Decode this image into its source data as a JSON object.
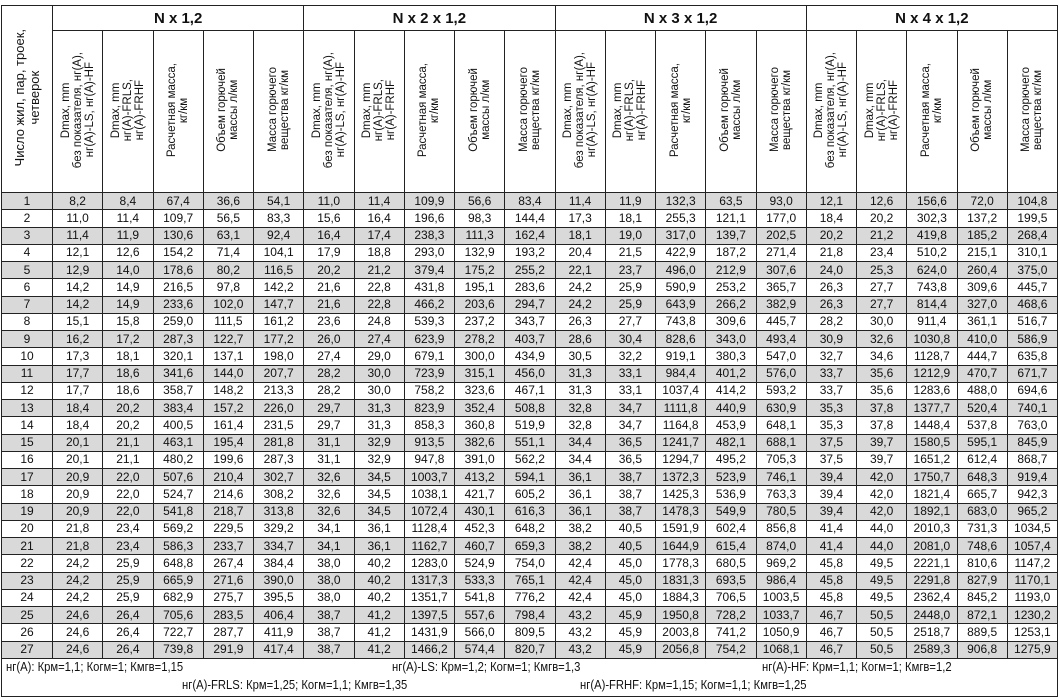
{
  "row_header": "Число жил, пар, троек,\nчетверок",
  "columns": [
    "Dmax, mm\nбез показателя, нг(А),\nнг(А)-LS, нг(А)-HF",
    "Dmax, mm\nнг(А)-FRLS,\nнг(А)-FRHF",
    "Расчетная масса,\nкг/км",
    "Объем горючей\nмассы л/км",
    "Масса горючего\nвещества кг/км"
  ],
  "groups": [
    "N x 1,2",
    "N x 2 x 1,2",
    "N x 3 x 1,2",
    "N x 4 x 1,2"
  ],
  "rows": [
    [
      "1",
      "8,2",
      "8,4",
      "67,4",
      "36,6",
      "54,1",
      "11,0",
      "11,4",
      "109,9",
      "56,6",
      "83,4",
      "11,4",
      "11,9",
      "132,3",
      "63,5",
      "93,0",
      "12,1",
      "12,6",
      "156,6",
      "72,0",
      "104,8"
    ],
    [
      "2",
      "11,0",
      "11,4",
      "109,7",
      "56,5",
      "83,3",
      "15,6",
      "16,4",
      "196,6",
      "98,3",
      "144,4",
      "17,3",
      "18,1",
      "255,3",
      "121,1",
      "177,0",
      "18,4",
      "20,2",
      "302,3",
      "137,2",
      "199,5"
    ],
    [
      "3",
      "11,4",
      "11,9",
      "130,6",
      "63,1",
      "92,4",
      "16,4",
      "17,4",
      "238,3",
      "111,3",
      "162,4",
      "18,1",
      "19,0",
      "317,0",
      "139,7",
      "202,5",
      "20,2",
      "21,2",
      "419,8",
      "185,2",
      "268,4"
    ],
    [
      "4",
      "12,1",
      "12,6",
      "154,2",
      "71,4",
      "104,1",
      "17,9",
      "18,8",
      "293,0",
      "132,9",
      "193,2",
      "20,4",
      "21,5",
      "422,9",
      "187,2",
      "271,4",
      "21,8",
      "23,4",
      "510,2",
      "215,1",
      "310,1"
    ],
    [
      "5",
      "12,9",
      "14,0",
      "178,6",
      "80,2",
      "116,5",
      "20,2",
      "21,2",
      "379,4",
      "175,2",
      "255,2",
      "22,1",
      "23,7",
      "496,0",
      "212,9",
      "307,6",
      "24,0",
      "25,3",
      "624,0",
      "260,4",
      "375,0"
    ],
    [
      "6",
      "14,2",
      "14,9",
      "216,5",
      "97,8",
      "142,2",
      "21,6",
      "22,8",
      "431,8",
      "195,1",
      "283,6",
      "24,2",
      "25,9",
      "590,9",
      "253,2",
      "365,7",
      "26,3",
      "27,7",
      "743,8",
      "309,6",
      "445,7"
    ],
    [
      "7",
      "14,2",
      "14,9",
      "233,6",
      "102,0",
      "147,7",
      "21,6",
      "22,8",
      "466,2",
      "203,6",
      "294,7",
      "24,2",
      "25,9",
      "643,9",
      "266,2",
      "382,9",
      "26,3",
      "27,7",
      "814,4",
      "327,0",
      "468,6"
    ],
    [
      "8",
      "15,1",
      "15,8",
      "259,0",
      "111,5",
      "161,2",
      "23,6",
      "24,8",
      "539,3",
      "237,2",
      "343,7",
      "26,3",
      "27,7",
      "743,8",
      "309,6",
      "445,7",
      "28,2",
      "30,0",
      "911,4",
      "361,1",
      "516,7"
    ],
    [
      "9",
      "16,2",
      "17,2",
      "287,3",
      "122,7",
      "177,2",
      "26,0",
      "27,4",
      "623,9",
      "278,2",
      "403,7",
      "28,6",
      "30,4",
      "828,6",
      "343,0",
      "493,4",
      "30,9",
      "32,6",
      "1030,8",
      "410,0",
      "586,9"
    ],
    [
      "10",
      "17,3",
      "18,1",
      "320,1",
      "137,1",
      "198,0",
      "27,4",
      "29,0",
      "679,1",
      "300,0",
      "434,9",
      "30,5",
      "32,2",
      "919,1",
      "380,3",
      "547,0",
      "32,7",
      "34,6",
      "1128,7",
      "444,7",
      "635,8"
    ],
    [
      "11",
      "17,7",
      "18,6",
      "341,6",
      "144,0",
      "207,7",
      "28,2",
      "30,0",
      "723,9",
      "315,1",
      "456,0",
      "31,3",
      "33,1",
      "984,4",
      "401,2",
      "576,0",
      "33,7",
      "35,6",
      "1212,9",
      "470,7",
      "671,7"
    ],
    [
      "12",
      "17,7",
      "18,6",
      "358,7",
      "148,2",
      "213,3",
      "28,2",
      "30,0",
      "758,2",
      "323,6",
      "467,1",
      "31,3",
      "33,1",
      "1037,4",
      "414,2",
      "593,2",
      "33,7",
      "35,6",
      "1283,6",
      "488,0",
      "694,6"
    ],
    [
      "13",
      "18,4",
      "20,2",
      "383,4",
      "157,2",
      "226,0",
      "29,7",
      "31,3",
      "823,9",
      "352,4",
      "508,8",
      "32,8",
      "34,7",
      "1111,8",
      "440,9",
      "630,9",
      "35,3",
      "37,8",
      "1377,7",
      "520,4",
      "740,1"
    ],
    [
      "14",
      "18,4",
      "20,2",
      "400,5",
      "161,4",
      "231,5",
      "29,7",
      "31,3",
      "858,3",
      "360,8",
      "519,9",
      "32,8",
      "34,7",
      "1164,8",
      "453,9",
      "648,1",
      "35,3",
      "37,8",
      "1448,4",
      "537,8",
      "763,0"
    ],
    [
      "15",
      "20,1",
      "21,1",
      "463,1",
      "195,4",
      "281,8",
      "31,1",
      "32,9",
      "913,5",
      "382,6",
      "551,1",
      "34,4",
      "36,5",
      "1241,7",
      "482,1",
      "688,1",
      "37,5",
      "39,7",
      "1580,5",
      "595,1",
      "845,9"
    ],
    [
      "16",
      "20,1",
      "21,1",
      "480,2",
      "199,6",
      "287,3",
      "31,1",
      "32,9",
      "947,8",
      "391,0",
      "562,2",
      "34,4",
      "36,5",
      "1294,7",
      "495,2",
      "705,3",
      "37,5",
      "39,7",
      "1651,2",
      "612,4",
      "868,7"
    ],
    [
      "17",
      "20,9",
      "22,0",
      "507,6",
      "210,4",
      "302,7",
      "32,6",
      "34,5",
      "1003,7",
      "413,2",
      "594,1",
      "36,1",
      "38,7",
      "1372,3",
      "523,9",
      "746,1",
      "39,4",
      "42,0",
      "1750,7",
      "648,3",
      "919,4"
    ],
    [
      "18",
      "20,9",
      "22,0",
      "524,7",
      "214,6",
      "308,2",
      "32,6",
      "34,5",
      "1038,1",
      "421,7",
      "605,2",
      "36,1",
      "38,7",
      "1425,3",
      "536,9",
      "763,3",
      "39,4",
      "42,0",
      "1821,4",
      "665,7",
      "942,3"
    ],
    [
      "19",
      "20,9",
      "22,0",
      "541,8",
      "218,7",
      "313,8",
      "32,6",
      "34,5",
      "1072,4",
      "430,1",
      "616,3",
      "36,1",
      "38,7",
      "1478,3",
      "549,9",
      "780,5",
      "39,4",
      "42,0",
      "1892,1",
      "683,0",
      "965,2"
    ],
    [
      "20",
      "21,8",
      "23,4",
      "569,2",
      "229,5",
      "329,2",
      "34,1",
      "36,1",
      "1128,4",
      "452,3",
      "648,2",
      "38,2",
      "40,5",
      "1591,9",
      "602,4",
      "856,8",
      "41,4",
      "44,0",
      "2010,3",
      "731,3",
      "1034,5"
    ],
    [
      "21",
      "21,8",
      "23,4",
      "586,3",
      "233,7",
      "334,7",
      "34,1",
      "36,1",
      "1162,7",
      "460,7",
      "659,3",
      "38,2",
      "40,5",
      "1644,9",
      "615,4",
      "874,0",
      "41,4",
      "44,0",
      "2081,0",
      "748,6",
      "1057,4"
    ],
    [
      "22",
      "24,2",
      "25,9",
      "648,8",
      "267,4",
      "384,4",
      "38,0",
      "40,2",
      "1283,0",
      "524,9",
      "754,0",
      "42,4",
      "45,0",
      "1778,3",
      "680,5",
      "969,2",
      "45,8",
      "49,5",
      "2221,1",
      "810,6",
      "1147,2"
    ],
    [
      "23",
      "24,2",
      "25,9",
      "665,9",
      "271,6",
      "390,0",
      "38,0",
      "40,2",
      "1317,3",
      "533,3",
      "765,1",
      "42,4",
      "45,0",
      "1831,3",
      "693,5",
      "986,4",
      "45,8",
      "49,5",
      "2291,8",
      "827,9",
      "1170,1"
    ],
    [
      "24",
      "24,2",
      "25,9",
      "682,9",
      "275,7",
      "395,5",
      "38,0",
      "40,2",
      "1351,7",
      "541,8",
      "776,2",
      "42,4",
      "45,0",
      "1884,3",
      "706,5",
      "1003,5",
      "45,8",
      "49,5",
      "2362,4",
      "845,2",
      "1193,0"
    ],
    [
      "25",
      "24,6",
      "26,4",
      "705,6",
      "283,5",
      "406,4",
      "38,7",
      "41,2",
      "1397,5",
      "557,6",
      "798,4",
      "43,2",
      "45,9",
      "1950,8",
      "728,2",
      "1033,7",
      "46,7",
      "50,5",
      "2448,0",
      "872,1",
      "1230,2"
    ],
    [
      "26",
      "24,6",
      "26,4",
      "722,7",
      "287,7",
      "411,9",
      "38,7",
      "41,2",
      "1431,9",
      "566,0",
      "809,5",
      "43,2",
      "45,9",
      "2003,8",
      "741,2",
      "1050,9",
      "46,7",
      "50,5",
      "2518,7",
      "889,5",
      "1253,1"
    ],
    [
      "27",
      "24,6",
      "26,4",
      "739,8",
      "291,9",
      "417,4",
      "38,7",
      "41,2",
      "1466,2",
      "574,4",
      "820,7",
      "43,2",
      "45,9",
      "2056,8",
      "754,2",
      "1068,1",
      "46,7",
      "50,5",
      "2589,3",
      "906,8",
      "1275,9"
    ]
  ],
  "footnotes": [
    "нг(А): Крм=1,1;  Когм=1;  Кмгв=1,15",
    "нг(А)-LS: Крм=1,2;  Когм=1;  Кмгв=1,3",
    "нг(А)-HF: Крм=1,1;  Когм=1;  Кмгв=1,2",
    "нг(А)-FRLS: Крм=1,25;  Когм=1,1;  Кмгв=1,35",
    "нг(А)-FRHF: Крм=1,15;  Когм=1,1;  Кмгв=1,25"
  ],
  "colors": {
    "shaded_row": "#d9d9d9",
    "border": "#222222"
  }
}
